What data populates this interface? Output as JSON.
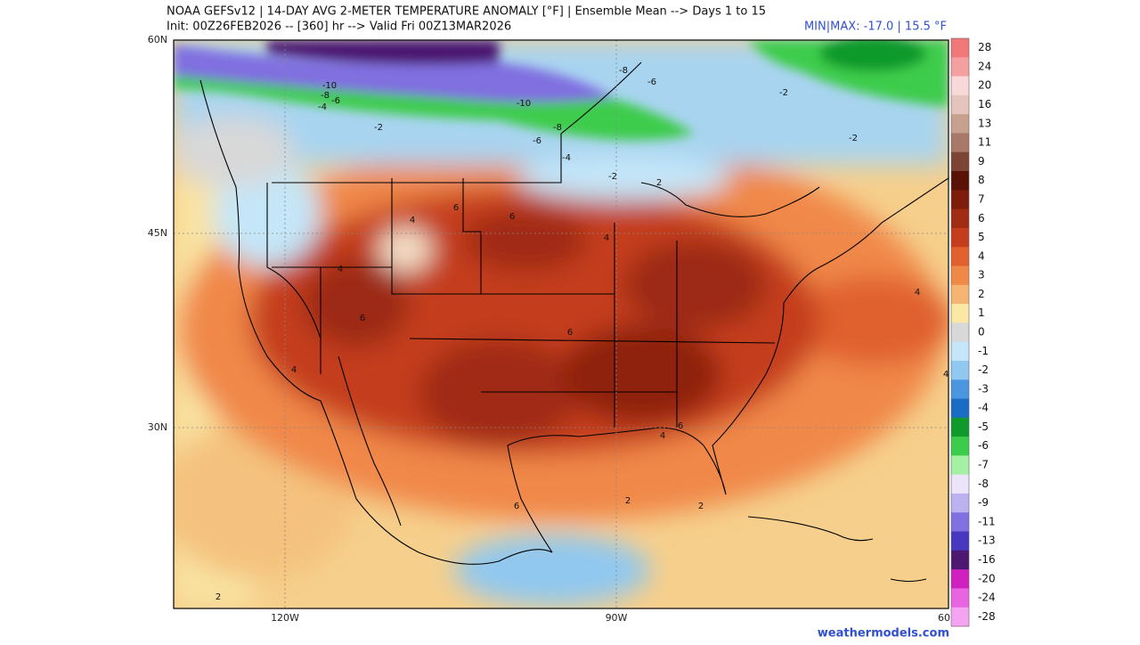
{
  "header": {
    "title": "NOAA GEFSv12 | 14-DAY AVG 2-METER TEMPERATURE ANOMALY [°F] | Ensemble Mean --> Days 1 to 15",
    "subtitle": "Init: 00Z26FEB2026 -- [360] hr --> Valid Fri 00Z13MAR2026",
    "minmax": "MIN|MAX: -17.0 | 15.5 °F"
  },
  "map": {
    "lat_labels": [
      "60N",
      "45N",
      "30N"
    ],
    "lon_labels": [
      "120W",
      "90W",
      "60"
    ],
    "contour_labels": [
      "-10",
      "-8",
      "-6",
      "-4",
      "-2",
      "-10",
      "-8",
      "-6",
      "-4",
      "-8",
      "-6",
      "-2",
      "-2",
      "-2",
      "4",
      "6",
      "6",
      "4",
      "4",
      "6",
      "6",
      "4",
      "6",
      "4",
      "4",
      "6",
      "2",
      "2",
      "4",
      "2",
      "2"
    ]
  },
  "colorbar": [
    {
      "label": 28,
      "color": "#f07878"
    },
    {
      "label": 24,
      "color": "#f4a0a0"
    },
    {
      "label": 20,
      "color": "#f8d8d8"
    },
    {
      "label": 16,
      "color": "#e4c4bc"
    },
    {
      "label": 13,
      "color": "#c8a090"
    },
    {
      "label": 11,
      "color": "#a87868"
    },
    {
      "label": 9,
      "color": "#7c4434"
    },
    {
      "label": 8,
      "color": "#5a1206"
    },
    {
      "label": 7,
      "color": "#7e1c0c"
    },
    {
      "label": 6,
      "color": "#a02c14"
    },
    {
      "label": 5,
      "color": "#c43e1e"
    },
    {
      "label": 4,
      "color": "#e0602e"
    },
    {
      "label": 3,
      "color": "#f08848"
    },
    {
      "label": 2,
      "color": "#f6b472"
    },
    {
      "label": 1,
      "color": "#fbe8a4"
    },
    {
      "label": 0,
      "color": "#d8d8d8"
    },
    {
      "label": -1,
      "color": "#c4e6f8"
    },
    {
      "label": -2,
      "color": "#90c8f0"
    },
    {
      "label": -3,
      "color": "#4c96e0"
    },
    {
      "label": -4,
      "color": "#1a6cc4"
    },
    {
      "label": -5,
      "color": "#109a2c"
    },
    {
      "label": -6,
      "color": "#3ccc4c"
    },
    {
      "label": -7,
      "color": "#a4f0a4"
    },
    {
      "label": -8,
      "color": "#ece4f8"
    },
    {
      "label": -9,
      "color": "#bcb2f0"
    },
    {
      "label": -11,
      "color": "#8070e0"
    },
    {
      "label": -13,
      "color": "#4838c0"
    },
    {
      "label": -16,
      "color": "#4c1870"
    },
    {
      "label": -20,
      "color": "#d020c0"
    },
    {
      "label": -24,
      "color": "#e864e0"
    },
    {
      "label": -28,
      "color": "#f4a4f0"
    }
  ],
  "footer": {
    "credit": "weathermodels.com"
  }
}
